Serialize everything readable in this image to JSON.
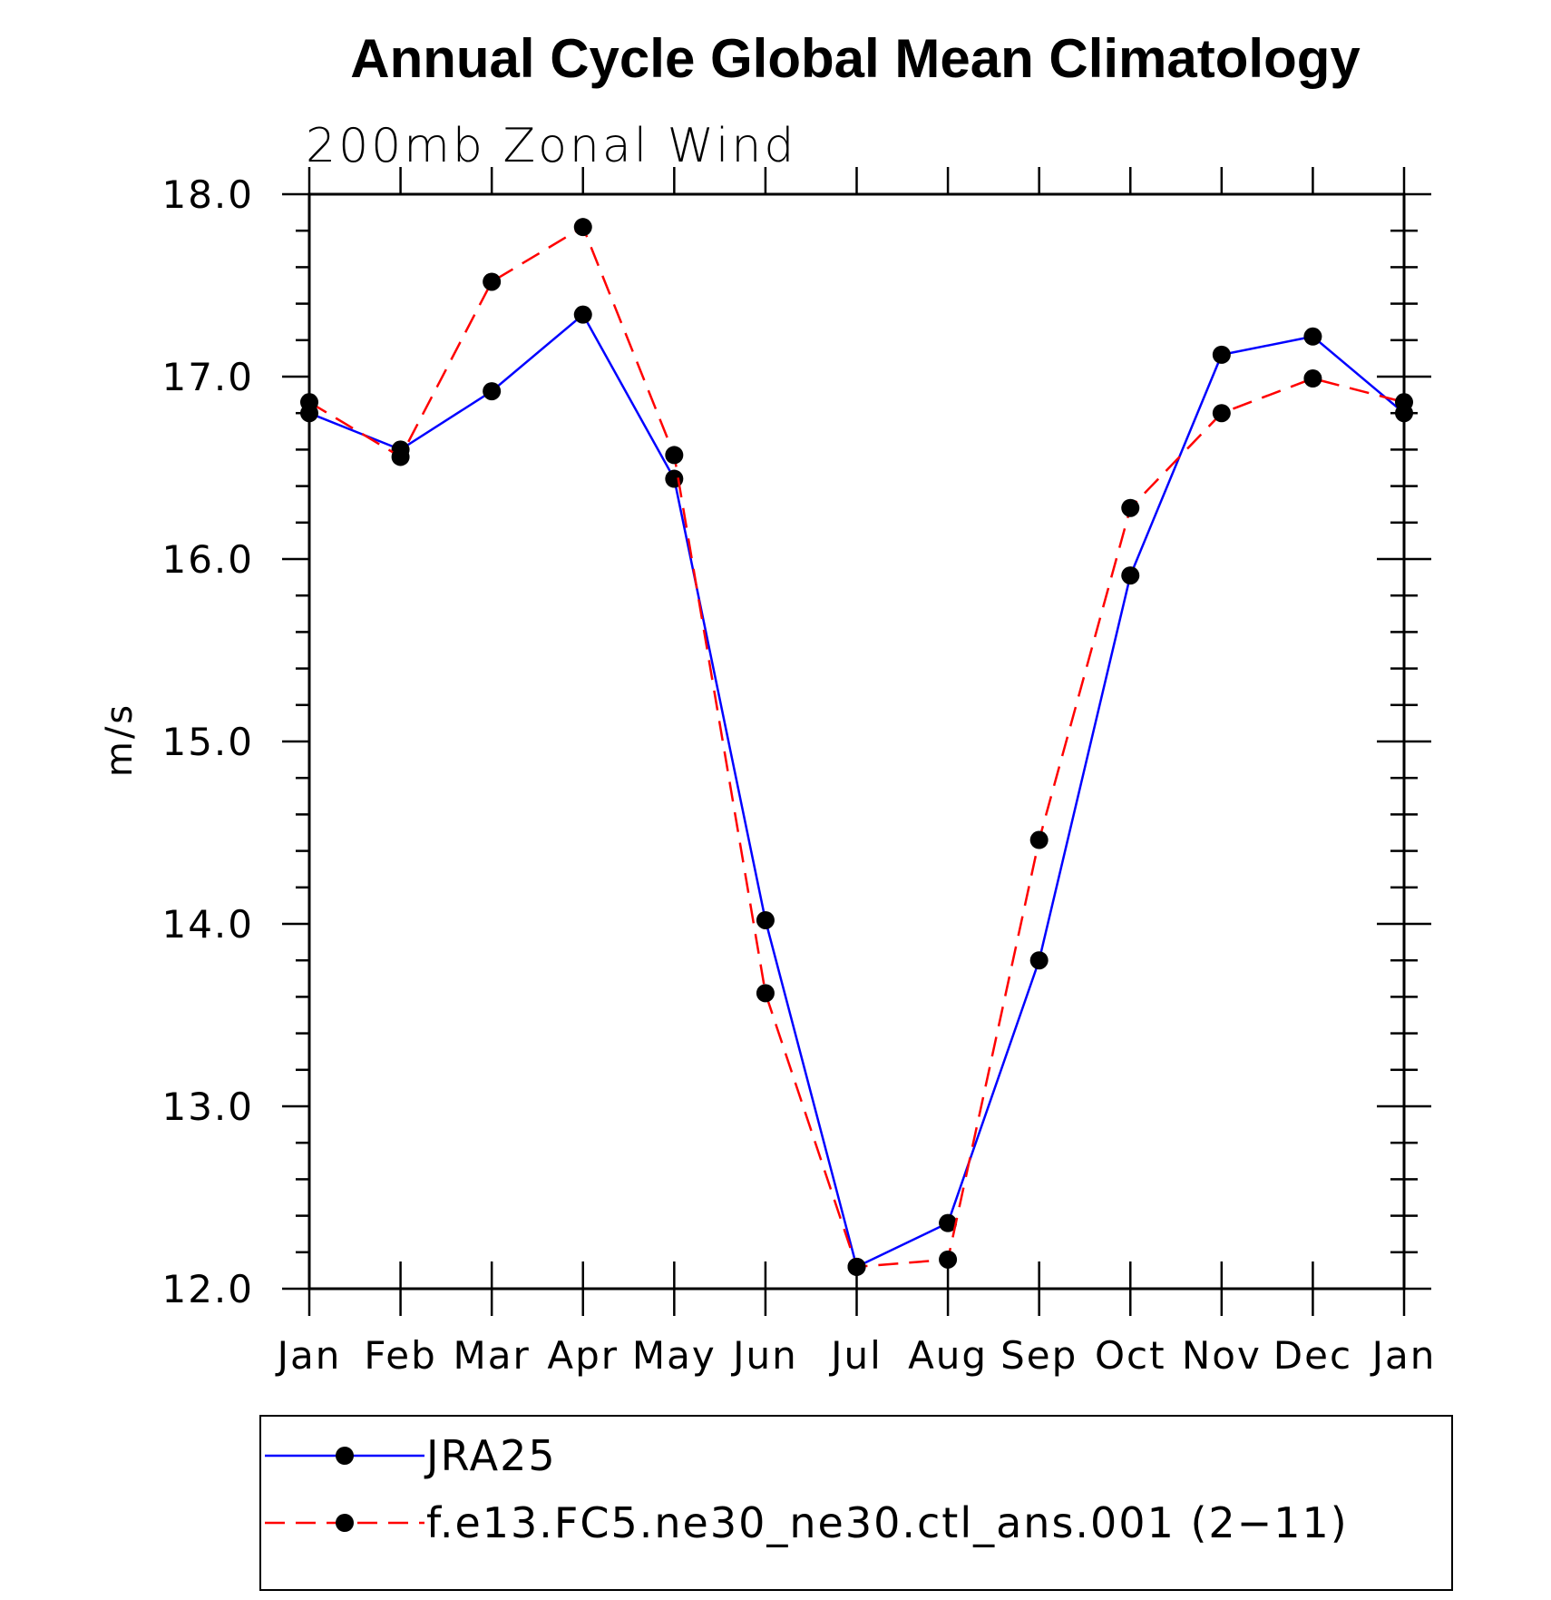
{
  "chart_data": {
    "type": "line",
    "title": "Annual Cycle Global Mean Climatology",
    "subtitle": "200mb  Zonal  Wind",
    "ylabel": "m/s",
    "xlabel": "",
    "ylim": [
      12.0,
      18.0
    ],
    "yticks": [
      "12.0",
      "13.0",
      "14.0",
      "15.0",
      "16.0",
      "17.0",
      "18.0"
    ],
    "categories": [
      "Jan",
      "Feb",
      "Mar",
      "Apr",
      "May",
      "Jun",
      "Jul",
      "Aug",
      "Sep",
      "Oct",
      "Nov",
      "Dec",
      "Jan"
    ],
    "series": [
      {
        "name": "JRA25",
        "color": "#0000ff",
        "dash": "solid",
        "values": [
          16.8,
          16.6,
          16.92,
          17.34,
          16.44,
          14.02,
          12.12,
          12.36,
          13.8,
          15.91,
          17.12,
          17.22,
          16.8
        ]
      },
      {
        "name": "f.e13.FC5.ne30_ne30.ctl_ans.001 (2−11)",
        "color": "#ff0000",
        "dash": "dashed",
        "values": [
          16.86,
          16.56,
          17.52,
          17.82,
          16.57,
          13.62,
          12.12,
          12.16,
          14.46,
          16.28,
          16.8,
          16.99,
          16.86
        ]
      }
    ],
    "legend_position": "bottom",
    "grid": false
  }
}
